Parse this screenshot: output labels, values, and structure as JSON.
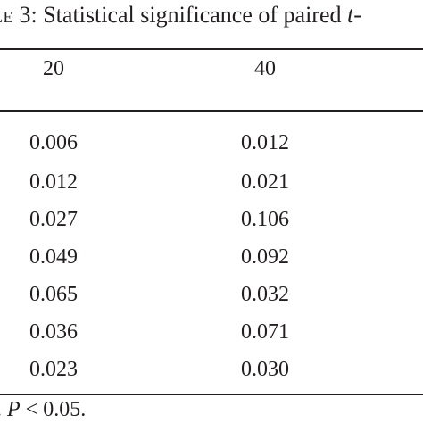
{
  "caption": {
    "prefix": "le",
    "number": " 3: Statistical significance of paired ",
    "t": "t",
    "suffix": "-"
  },
  "headers": [
    "20",
    "40"
  ],
  "rows": [
    [
      "0.006",
      "0.012"
    ],
    [
      "0.012",
      "0.021"
    ],
    [
      "0.027",
      "0.106"
    ],
    [
      "0.049",
      "0.092"
    ],
    [
      "0.065",
      "0.032"
    ],
    [
      "0.036",
      "0.071"
    ],
    [
      "0.023",
      "0.030"
    ]
  ],
  "footnote": {
    "lead": ". ",
    "p": "P",
    "rest": " < 0.05."
  }
}
